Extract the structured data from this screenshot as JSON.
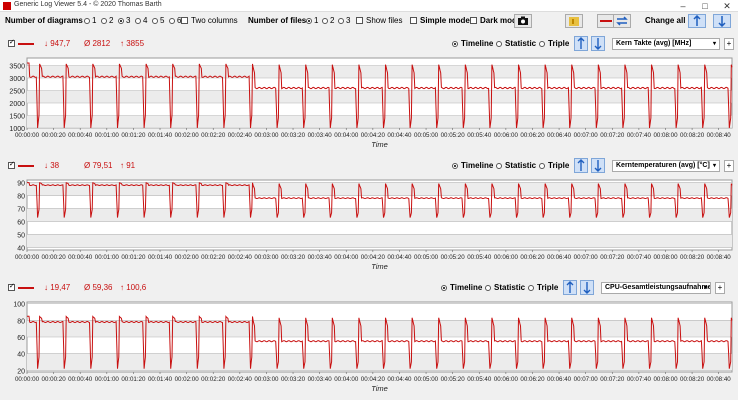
{
  "window": {
    "title": "Generic Log Viewer 5.4 - © 2020 Thomas Barth",
    "controls": [
      "–",
      "□",
      "✕"
    ]
  },
  "toolbar": {
    "diagrams_label": "Number of diagrams",
    "diagram_options": [
      "1",
      "2",
      "3",
      "4",
      "5",
      "6"
    ],
    "diagram_selected": "3",
    "two_columns_label": "Two columns",
    "files_label": "Number of files",
    "file_options": [
      "1",
      "2",
      "3"
    ],
    "file_selected": "1",
    "show_files_label": "Show files",
    "simple_mode_label": "Simple mode",
    "dark_mode_label": "Dark mod",
    "change_all_label": "Change all",
    "accent": "#c81010"
  },
  "panels": [
    {
      "min": "947,7",
      "avg": "2812",
      "max": "3855",
      "timeline_label": "Timeline",
      "statistic_label": "Statistic",
      "triple_label": "Triple",
      "selected_view": "Timeline",
      "sensor": "Kern Takte (avg) [MHz]",
      "xlabel": "Time"
    },
    {
      "min": "38",
      "avg": "79,51",
      "max": "91",
      "timeline_label": "Timeline",
      "statistic_label": "Statistic",
      "triple_label": "Triple",
      "selected_view": "Timeline",
      "sensor": "Kerntemperaturen (avg) [°C]",
      "xlabel": "Time"
    },
    {
      "min": "19,47",
      "avg": "59,36",
      "max": "100,6",
      "timeline_label": "Timeline",
      "statistic_label": "Statistic",
      "triple_label": "Triple",
      "selected_view": "Timeline",
      "sensor": "CPU-Gesamtleistungsaufnahme [W]",
      "xlabel": "Time"
    }
  ],
  "chart_data": [
    {
      "type": "line",
      "series": [
        {
          "name": "Kern Takte (avg) [MHz]",
          "color": "#c81010"
        }
      ],
      "xlabel": "Time",
      "ylabel": "",
      "ylim": [
        1000,
        3800
      ],
      "yticks": [
        1000,
        1500,
        2000,
        2500,
        3000,
        3500
      ],
      "xticks": [
        "00:00:00",
        "00:00:20",
        "00:00:40",
        "00:01:00",
        "00:01:20",
        "00:01:40",
        "00:02:00",
        "00:02:20",
        "00:02:40",
        "00:03:00",
        "00:03:20",
        "00:03:40",
        "00:04:00",
        "00:04:20",
        "00:04:40",
        "00:05:00",
        "00:05:20",
        "00:05:40",
        "00:06:00",
        "00:06:20",
        "00:06:40",
        "00:07:00",
        "00:07:20",
        "00:07:40",
        "00:08:00",
        "00:08:20",
        "00:08:40"
      ],
      "x_range_seconds": [
        0,
        530
      ],
      "pattern": {
        "period_s": 20,
        "base": 2600,
        "peak": 3600,
        "dip": 1000,
        "start_level": 3050,
        "start_until_s": 170
      },
      "grid": true
    },
    {
      "type": "line",
      "series": [
        {
          "name": "Kerntemperaturen (avg) [°C]",
          "color": "#c81010"
        }
      ],
      "xlabel": "Time",
      "ylabel": "",
      "ylim": [
        38,
        92
      ],
      "yticks": [
        40,
        50,
        60,
        70,
        80,
        90
      ],
      "xticks": [
        "00:00:00",
        "00:00:20",
        "00:00:40",
        "00:01:00",
        "00:01:20",
        "00:01:40",
        "00:02:00",
        "00:02:20",
        "00:02:40",
        "00:03:00",
        "00:03:20",
        "00:03:40",
        "00:04:00",
        "00:04:20",
        "00:04:40",
        "00:05:00",
        "00:05:20",
        "00:05:40",
        "00:06:00",
        "00:06:20",
        "00:06:40",
        "00:07:00",
        "00:07:20",
        "00:07:40",
        "00:08:00",
        "00:08:20",
        "00:08:40"
      ],
      "x_range_seconds": [
        0,
        530
      ],
      "pattern": {
        "period_s": 20,
        "base": 78,
        "peak": 90,
        "dip": 63,
        "start_level": 88,
        "start_until_s": 170
      },
      "grid": true
    },
    {
      "type": "line",
      "series": [
        {
          "name": "CPU-Gesamtleistungsaufnahme [W]",
          "color": "#c81010"
        }
      ],
      "xlabel": "Time",
      "ylabel": "",
      "ylim": [
        18,
        102
      ],
      "yticks": [
        20,
        40,
        60,
        80,
        100
      ],
      "xticks": [
        "00:00:00",
        "00:00:20",
        "00:00:40",
        "00:01:00",
        "00:01:20",
        "00:01:40",
        "00:02:00",
        "00:02:20",
        "00:02:40",
        "00:03:00",
        "00:03:20",
        "00:03:40",
        "00:04:00",
        "00:04:20",
        "00:04:40",
        "00:05:00",
        "00:05:20",
        "00:05:40",
        "00:06:00",
        "00:06:20",
        "00:06:40",
        "00:07:00",
        "00:07:20",
        "00:07:40",
        "00:08:00",
        "00:08:20",
        "00:08:40"
      ],
      "x_range_seconds": [
        0,
        530
      ],
      "pattern": {
        "period_s": 20,
        "base": 55,
        "peak": 85,
        "dip": 22,
        "start_level": 78,
        "start_until_s": 170
      },
      "grid": true
    }
  ]
}
